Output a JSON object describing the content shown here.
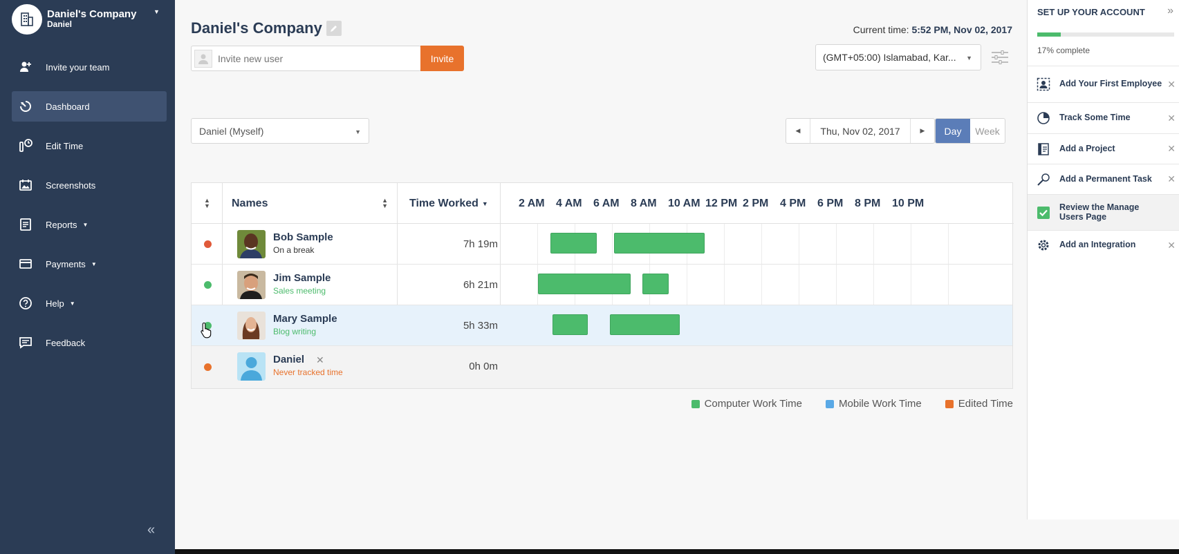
{
  "sidebar": {
    "company_name": "Daniel's Company",
    "company_user": "Daniel",
    "items": [
      {
        "label": "Invite your team",
        "icon": "add-user-icon"
      },
      {
        "label": "Dashboard",
        "icon": "dashboard-icon",
        "active": true
      },
      {
        "label": "Edit Time",
        "icon": "edit-time-icon"
      },
      {
        "label": "Screenshots",
        "icon": "screenshots-icon"
      },
      {
        "label": "Reports",
        "icon": "reports-icon"
      },
      {
        "label": "Payments",
        "icon": "payments-icon"
      },
      {
        "label": "Help",
        "icon": "help-icon"
      },
      {
        "label": "Feedback",
        "icon": "feedback-icon"
      }
    ],
    "collapse_label": "«"
  },
  "header": {
    "title": "Daniel's Company",
    "current_time_label": "Current time:",
    "current_time_value": "5:52 PM, Nov 02, 2017",
    "invite_placeholder": "Invite new user",
    "invite_button": "Invite",
    "timezone": "(GMT+05:00) Islamabad, Kar..."
  },
  "filters": {
    "user_select": "Daniel (Myself)",
    "date": "Thu, Nov 02, 2017",
    "view_day": "Day",
    "view_week": "Week"
  },
  "table": {
    "col_names": "Names",
    "col_time": "Time Worked",
    "hours": [
      "2 AM",
      "4 AM",
      "6 AM",
      "8 AM",
      "10 AM",
      "12 PM",
      "2 PM",
      "4 PM",
      "6 PM",
      "8 PM",
      "10 PM"
    ],
    "rows": [
      {
        "name": "Bob Sample",
        "status": "On a break",
        "status_color": "#333333",
        "dot": "#e05a3a",
        "time": "7h 19m",
        "avatar": "bob-avatar"
      },
      {
        "name": "Jim Sample",
        "status": "Sales meeting",
        "status_color": "#4cbb6c",
        "dot": "#4cbb6c",
        "time": "6h 21m",
        "avatar": "jim-avatar"
      },
      {
        "name": "Mary Sample",
        "status": "Blog writing",
        "status_color": "#4cbb6c",
        "dot": "#4cbb6c",
        "time": "5h 33m",
        "avatar": "mary-avatar"
      },
      {
        "name": "Daniel",
        "status": "Never tracked time",
        "status_color": "#e8722c",
        "dot": "#e8722c",
        "time": "0h 0m",
        "avatar": "default-avatar"
      }
    ]
  },
  "legend": [
    {
      "label": "Computer Work Time",
      "color": "#4cbb6c"
    },
    {
      "label": "Mobile Work Time",
      "color": "#5aa9e6"
    },
    {
      "label": "Edited Time",
      "color": "#e8722c"
    }
  ],
  "setup": {
    "title": "SET UP YOUR ACCOUNT",
    "progress": 0.17,
    "progress_text": "17% complete",
    "tasks": [
      {
        "label": "Add Your First Employee",
        "icon": "employee-icon",
        "done": false
      },
      {
        "label": "Track Some Time",
        "icon": "clock-pie-icon",
        "done": false
      },
      {
        "label": "Add a Project",
        "icon": "project-icon",
        "done": false
      },
      {
        "label": "Add a Permanent Task",
        "icon": "magnifier-icon",
        "done": false
      },
      {
        "label": "Review the Manage Users Page",
        "icon": "checkbox-icon",
        "done": true
      },
      {
        "label": "Add an Integration",
        "icon": "gear-icon",
        "done": false
      }
    ]
  }
}
